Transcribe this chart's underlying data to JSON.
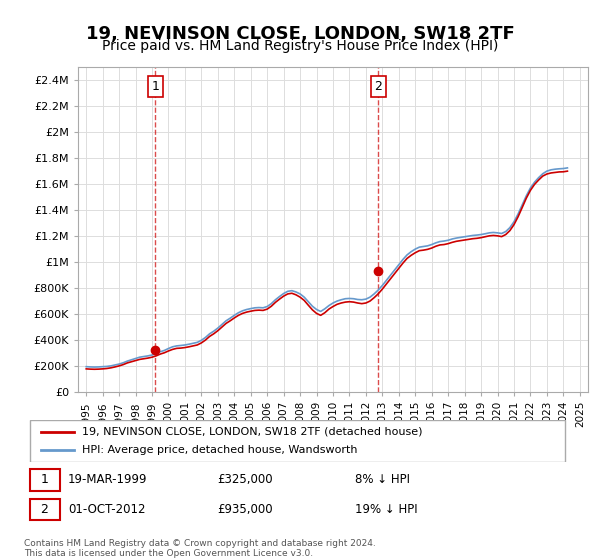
{
  "title": "19, NEVINSON CLOSE, LONDON, SW18 2TF",
  "subtitle": "Price paid vs. HM Land Registry's House Price Index (HPI)",
  "title_fontsize": 13,
  "subtitle_fontsize": 10,
  "background_color": "#ffffff",
  "plot_bg_color": "#ffffff",
  "grid_color": "#dddddd",
  "sale1": {
    "date_num": 1999.21,
    "price": 325000,
    "label": "1"
  },
  "sale2": {
    "date_num": 2012.75,
    "price": 935000,
    "label": "2"
  },
  "property_color": "#cc0000",
  "hpi_color": "#6699cc",
  "ylim": [
    0,
    2500000
  ],
  "xlim": [
    1994.5,
    2025.5
  ],
  "yticks": [
    0,
    200000,
    400000,
    600000,
    800000,
    1000000,
    1200000,
    1400000,
    1600000,
    1800000,
    2000000,
    2200000,
    2400000
  ],
  "ytick_labels": [
    "£0",
    "£200K",
    "£400K",
    "£600K",
    "£800K",
    "£1M",
    "£1.2M",
    "£1.4M",
    "£1.6M",
    "£1.8M",
    "£2M",
    "£2.2M",
    "£2.4M"
  ],
  "xticks": [
    1995,
    1996,
    1997,
    1998,
    1999,
    2000,
    2001,
    2002,
    2003,
    2004,
    2005,
    2006,
    2007,
    2008,
    2009,
    2010,
    2011,
    2012,
    2013,
    2014,
    2015,
    2016,
    2017,
    2018,
    2019,
    2020,
    2021,
    2022,
    2023,
    2024,
    2025
  ],
  "legend_entries": [
    "19, NEVINSON CLOSE, LONDON, SW18 2TF (detached house)",
    "HPI: Average price, detached house, Wandsworth"
  ],
  "annotation1": "1    19-MAR-1999       £325,000        8% ↓ HPI",
  "annotation2": "2    01-OCT-2012       £935,000       19% ↓ HPI",
  "footer": "Contains HM Land Registry data © Crown copyright and database right 2024.\nThis data is licensed under the Open Government Licence v3.0.",
  "hpi_data": {
    "years": [
      1995,
      1995.25,
      1995.5,
      1995.75,
      1996,
      1996.25,
      1996.5,
      1996.75,
      1997,
      1997.25,
      1997.5,
      1997.75,
      1998,
      1998.25,
      1998.5,
      1998.75,
      1999,
      1999.25,
      1999.5,
      1999.75,
      2000,
      2000.25,
      2000.5,
      2000.75,
      2001,
      2001.25,
      2001.5,
      2001.75,
      2002,
      2002.25,
      2002.5,
      2002.75,
      2003,
      2003.25,
      2003.5,
      2003.75,
      2004,
      2004.25,
      2004.5,
      2004.75,
      2005,
      2005.25,
      2005.5,
      2005.75,
      2006,
      2006.25,
      2006.5,
      2006.75,
      2007,
      2007.25,
      2007.5,
      2007.75,
      2008,
      2008.25,
      2008.5,
      2008.75,
      2009,
      2009.25,
      2009.5,
      2009.75,
      2010,
      2010.25,
      2010.5,
      2010.75,
      2011,
      2011.25,
      2011.5,
      2011.75,
      2012,
      2012.25,
      2012.5,
      2012.75,
      2013,
      2013.25,
      2013.5,
      2013.75,
      2014,
      2014.25,
      2014.5,
      2014.75,
      2015,
      2015.25,
      2015.5,
      2015.75,
      2016,
      2016.25,
      2016.5,
      2016.75,
      2017,
      2017.25,
      2017.5,
      2017.75,
      2018,
      2018.25,
      2018.5,
      2018.75,
      2019,
      2019.25,
      2019.5,
      2019.75,
      2020,
      2020.25,
      2020.5,
      2020.75,
      2021,
      2021.25,
      2021.5,
      2021.75,
      2022,
      2022.25,
      2022.5,
      2022.75,
      2023,
      2023.25,
      2023.5,
      2023.75,
      2024,
      2024.25
    ],
    "values": [
      195000,
      193000,
      192000,
      193000,
      195000,
      197000,
      201000,
      208000,
      215000,
      225000,
      238000,
      248000,
      258000,
      268000,
      273000,
      278000,
      285000,
      295000,
      310000,
      320000,
      335000,
      348000,
      355000,
      358000,
      362000,
      368000,
      375000,
      382000,
      398000,
      420000,
      448000,
      468000,
      492000,
      520000,
      548000,
      568000,
      590000,
      610000,
      625000,
      635000,
      642000,
      648000,
      650000,
      648000,
      658000,
      680000,
      710000,
      735000,
      758000,
      775000,
      780000,
      770000,
      755000,
      730000,
      695000,
      660000,
      635000,
      620000,
      640000,
      665000,
      685000,
      700000,
      710000,
      718000,
      720000,
      718000,
      712000,
      710000,
      715000,
      730000,
      755000,
      785000,
      820000,
      860000,
      900000,
      940000,
      980000,
      1020000,
      1055000,
      1080000,
      1100000,
      1115000,
      1120000,
      1125000,
      1135000,
      1148000,
      1158000,
      1162000,
      1168000,
      1178000,
      1185000,
      1190000,
      1195000,
      1200000,
      1205000,
      1208000,
      1212000,
      1218000,
      1225000,
      1228000,
      1225000,
      1220000,
      1235000,
      1265000,
      1310000,
      1370000,
      1440000,
      1510000,
      1570000,
      1615000,
      1650000,
      1680000,
      1700000,
      1710000,
      1715000,
      1718000,
      1720000,
      1725000
    ]
  },
  "property_data": {
    "years": [
      1995,
      1995.25,
      1995.5,
      1995.75,
      1996,
      1996.25,
      1996.5,
      1996.75,
      1997,
      1997.25,
      1997.5,
      1997.75,
      1998,
      1998.25,
      1998.5,
      1998.75,
      1999,
      1999.25,
      1999.5,
      1999.75,
      2000,
      2000.25,
      2000.5,
      2000.75,
      2001,
      2001.25,
      2001.5,
      2001.75,
      2002,
      2002.25,
      2002.5,
      2002.75,
      2003,
      2003.25,
      2003.5,
      2003.75,
      2004,
      2004.25,
      2004.5,
      2004.75,
      2005,
      2005.25,
      2005.5,
      2005.75,
      2006,
      2006.25,
      2006.5,
      2006.75,
      2007,
      2007.25,
      2007.5,
      2007.75,
      2008,
      2008.25,
      2008.5,
      2008.75,
      2009,
      2009.25,
      2009.5,
      2009.75,
      2010,
      2010.25,
      2010.5,
      2010.75,
      2011,
      2011.25,
      2011.5,
      2011.75,
      2012,
      2012.25,
      2012.5,
      2012.75,
      2013,
      2013.25,
      2013.5,
      2013.75,
      2014,
      2014.25,
      2014.5,
      2014.75,
      2015,
      2015.25,
      2015.5,
      2015.75,
      2016,
      2016.25,
      2016.5,
      2016.75,
      2017,
      2017.25,
      2017.5,
      2017.75,
      2018,
      2018.25,
      2018.5,
      2018.75,
      2019,
      2019.25,
      2019.5,
      2019.75,
      2020,
      2020.25,
      2020.5,
      2020.75,
      2021,
      2021.25,
      2021.5,
      2021.75,
      2022,
      2022.25,
      2022.5,
      2022.75,
      2023,
      2023.25,
      2023.5,
      2023.75,
      2024,
      2024.25
    ],
    "values": [
      178000,
      176000,
      175000,
      176000,
      178000,
      181000,
      186000,
      193000,
      201000,
      211000,
      224000,
      233000,
      242000,
      251000,
      256000,
      261000,
      268000,
      278000,
      292000,
      302000,
      316000,
      328000,
      336000,
      338000,
      342000,
      348000,
      355000,
      362000,
      378000,
      400000,
      428000,
      448000,
      472000,
      500000,
      528000,
      548000,
      570000,
      590000,
      605000,
      615000,
      622000,
      628000,
      630000,
      628000,
      638000,
      660000,
      690000,
      715000,
      738000,
      755000,
      760000,
      748000,
      730000,
      705000,
      668000,
      632000,
      605000,
      590000,
      610000,
      638000,
      658000,
      675000,
      685000,
      692000,
      695000,
      692000,
      685000,
      680000,
      685000,
      700000,
      726000,
      756000,
      792000,
      832000,
      872000,
      912000,
      952000,
      992000,
      1028000,
      1052000,
      1072000,
      1088000,
      1092000,
      1098000,
      1108000,
      1122000,
      1132000,
      1135000,
      1142000,
      1152000,
      1160000,
      1165000,
      1170000,
      1175000,
      1180000,
      1183000,
      1188000,
      1195000,
      1202000,
      1205000,
      1202000,
      1196000,
      1212000,
      1242000,
      1288000,
      1349000,
      1420000,
      1492000,
      1552000,
      1598000,
      1632000,
      1662000,
      1678000,
      1686000,
      1690000,
      1694000,
      1695000,
      1700000
    ]
  }
}
